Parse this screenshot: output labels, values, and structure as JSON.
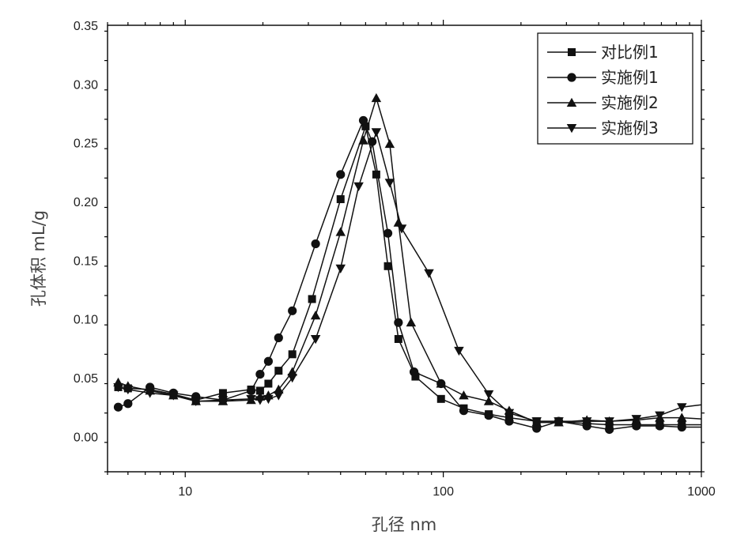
{
  "chart_data": {
    "type": "line",
    "x_scale": "log",
    "xlabel": "孔径 nm",
    "ylabel": "孔体积 mL/g",
    "xlim": [
      5,
      1000
    ],
    "ylim": [
      -0.03,
      0.35
    ],
    "x_ticks": [
      10,
      100,
      1000
    ],
    "x_tick_labels": [
      "10",
      "100",
      "1000"
    ],
    "y_ticks": [
      0.0,
      0.05,
      0.1,
      0.15,
      0.2,
      0.25,
      0.3,
      0.35
    ],
    "y_tick_labels": [
      "0.00",
      "0.05",
      "0.10",
      "0.15",
      "0.20",
      "0.25",
      "0.30",
      "0.35"
    ],
    "grid": false,
    "legend_position": "top-right",
    "series": [
      {
        "name": "对比例1",
        "marker": "square",
        "points": [
          [
            5.5,
            0.042
          ],
          [
            6,
            0.041
          ],
          [
            7.3,
            0.04
          ],
          [
            9,
            0.036
          ],
          [
            11,
            0.031
          ],
          [
            14,
            0.037
          ],
          [
            18,
            0.04
          ],
          [
            19.5,
            0.039
          ],
          [
            21,
            0.045
          ],
          [
            23,
            0.056
          ],
          [
            26,
            0.07
          ],
          [
            31,
            0.117
          ],
          [
            40,
            0.202
          ],
          [
            50,
            0.264
          ],
          [
            55,
            0.223
          ],
          [
            61,
            0.145
          ],
          [
            67,
            0.083
          ],
          [
            78,
            0.051
          ],
          [
            98,
            0.032
          ],
          [
            120,
            0.024
          ],
          [
            150,
            0.019
          ],
          [
            180,
            0.016
          ],
          [
            230,
            0.013
          ],
          [
            280,
            0.013
          ],
          [
            360,
            0.011
          ],
          [
            440,
            0.01
          ],
          [
            560,
            0.01
          ],
          [
            690,
            0.01
          ],
          [
            840,
            0.01
          ],
          [
            1000,
            0.01
          ]
        ]
      },
      {
        "name": "实施例1",
        "marker": "circle",
        "points": [
          [
            5.5,
            0.025
          ],
          [
            6,
            0.028
          ],
          [
            7.3,
            0.042
          ],
          [
            9,
            0.037
          ],
          [
            11,
            0.034
          ],
          [
            14,
            0.031
          ],
          [
            18,
            0.039
          ],
          [
            19.5,
            0.053
          ],
          [
            21,
            0.064
          ],
          [
            23,
            0.084
          ],
          [
            26,
            0.107
          ],
          [
            32,
            0.164
          ],
          [
            40,
            0.223
          ],
          [
            49,
            0.269
          ],
          [
            53,
            0.251
          ],
          [
            61,
            0.173
          ],
          [
            67,
            0.097
          ],
          [
            77,
            0.055
          ],
          [
            98,
            0.045
          ],
          [
            120,
            0.022
          ],
          [
            150,
            0.018
          ],
          [
            180,
            0.013
          ],
          [
            230,
            0.007
          ],
          [
            280,
            0.013
          ],
          [
            360,
            0.009
          ],
          [
            440,
            0.006
          ],
          [
            560,
            0.009
          ],
          [
            690,
            0.009
          ],
          [
            840,
            0.008
          ],
          [
            1000,
            0.008
          ]
        ]
      },
      {
        "name": "实施例2",
        "marker": "triangle-up",
        "points": [
          [
            5.5,
            0.046
          ],
          [
            6,
            0.043
          ],
          [
            7.3,
            0.039
          ],
          [
            9,
            0.035
          ],
          [
            11,
            0.03
          ],
          [
            14,
            0.03
          ],
          [
            18,
            0.031
          ],
          [
            19.5,
            0.034
          ],
          [
            21,
            0.035
          ],
          [
            23,
            0.04
          ],
          [
            26,
            0.055
          ],
          [
            32,
            0.103
          ],
          [
            40,
            0.174
          ],
          [
            49,
            0.252
          ],
          [
            55,
            0.288
          ],
          [
            62,
            0.249
          ],
          [
            67,
            0.182
          ],
          [
            75,
            0.097
          ],
          [
            98,
            0.045
          ],
          [
            120,
            0.035
          ],
          [
            150,
            0.03
          ],
          [
            180,
            0.022
          ],
          [
            230,
            0.012
          ],
          [
            280,
            0.012
          ],
          [
            360,
            0.014
          ],
          [
            440,
            0.013
          ],
          [
            560,
            0.014
          ],
          [
            690,
            0.016
          ],
          [
            840,
            0.016
          ],
          [
            1000,
            0.015
          ]
        ]
      },
      {
        "name": "实施例3",
        "marker": "triangle-down",
        "points": [
          [
            5.5,
            0.042
          ],
          [
            6,
            0.04
          ],
          [
            7.3,
            0.037
          ],
          [
            9,
            0.035
          ],
          [
            11,
            0.03
          ],
          [
            14,
            0.031
          ],
          [
            18,
            0.032
          ],
          [
            19.5,
            0.031
          ],
          [
            21,
            0.032
          ],
          [
            23,
            0.035
          ],
          [
            26,
            0.05
          ],
          [
            32,
            0.083
          ],
          [
            40,
            0.143
          ],
          [
            47,
            0.213
          ],
          [
            55,
            0.259
          ],
          [
            62,
            0.216
          ],
          [
            69,
            0.177
          ],
          [
            88,
            0.139
          ],
          [
            115,
            0.073
          ],
          [
            150,
            0.036
          ],
          [
            180,
            0.02
          ],
          [
            230,
            0.013
          ],
          [
            280,
            0.013
          ],
          [
            360,
            0.013
          ],
          [
            440,
            0.013
          ],
          [
            560,
            0.015
          ],
          [
            690,
            0.018
          ],
          [
            840,
            0.025
          ],
          [
            1000,
            0.027
          ]
        ]
      }
    ]
  }
}
